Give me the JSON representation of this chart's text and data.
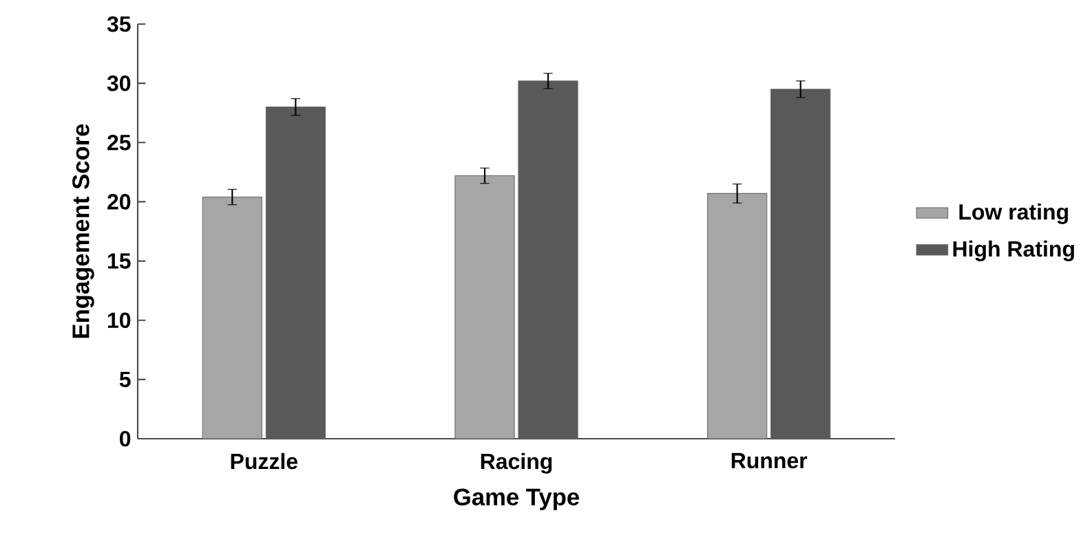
{
  "chart_data": {
    "type": "bar",
    "xlabel": "Game Type",
    "ylabel": "Engagement Score",
    "categories": [
      "Puzzle",
      "Racing",
      "Runner"
    ],
    "series": [
      {
        "name": "Low rating",
        "color": "#a6a6a6",
        "values": [
          20.4,
          22.2,
          20.7
        ],
        "errors": [
          0.65,
          0.65,
          0.8
        ]
      },
      {
        "name": "High Rating",
        "color": "#595959",
        "values": [
          28.0,
          30.2,
          29.5
        ],
        "errors": [
          0.7,
          0.65,
          0.7
        ]
      }
    ],
    "ylim": [
      0,
      35
    ],
    "yticks": [
      0,
      5,
      10,
      15,
      20,
      25,
      30,
      35
    ],
    "legend": "right",
    "grid": false
  }
}
